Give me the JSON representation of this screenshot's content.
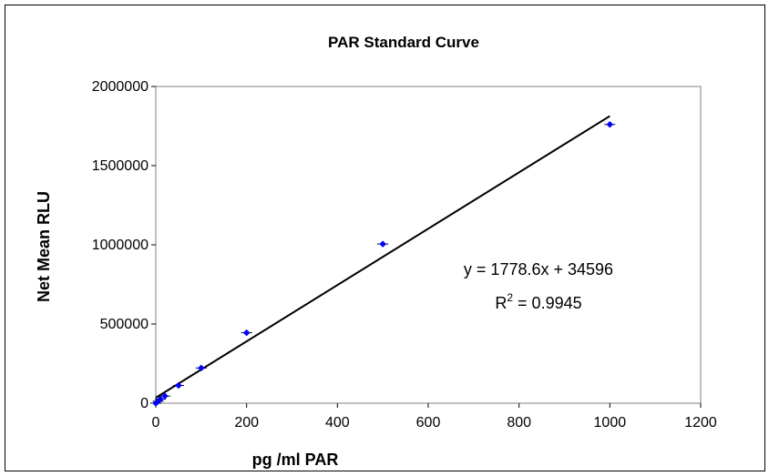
{
  "chart_data": {
    "type": "scatter",
    "title": "PAR Standard  Curve",
    "xlabel": "pg /ml PAR",
    "ylabel": "Net Mean RLU",
    "xlim": [
      0,
      1200
    ],
    "ylim": [
      0,
      2000000
    ],
    "x_ticks": [
      "0",
      "200",
      "400",
      "600",
      "800",
      "1000",
      "1200"
    ],
    "y_ticks": [
      "0",
      "500000",
      "1000000",
      "1500000",
      "2000000"
    ],
    "grid": false,
    "legend": "none",
    "marker_color": "#0000ff",
    "series": [
      {
        "points": [
          {
            "x": 0,
            "y": 0
          },
          {
            "x": 5,
            "y": 12000
          },
          {
            "x": 10,
            "y": 25000
          },
          {
            "x": 20,
            "y": 45000
          },
          {
            "x": 50,
            "y": 112000
          },
          {
            "x": 100,
            "y": 222000
          },
          {
            "x": 200,
            "y": 445000
          },
          {
            "x": 500,
            "y": 1005000
          },
          {
            "x": 1000,
            "y": 1760000
          }
        ]
      }
    ],
    "trendline": {
      "slope": 1778.6,
      "intercept": 34596,
      "x_range": [
        0,
        1000
      ]
    },
    "annotation": {
      "equation": "y = 1778.6x + 34596",
      "r2_prefix": "R",
      "r2_sup": "2",
      "r2_value": " = 0.9945"
    }
  }
}
